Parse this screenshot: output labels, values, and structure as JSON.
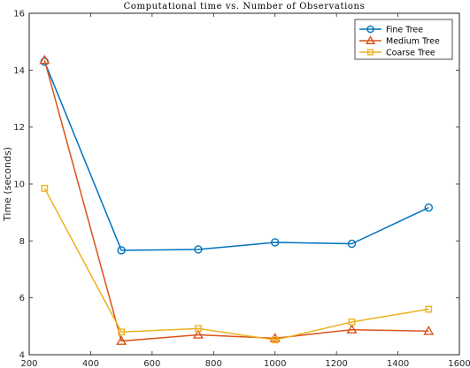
{
  "chart_data": {
    "type": "line",
    "title": "Computational time vs. Number of Observations",
    "xlabel": "",
    "ylabel": "Time (seconds)",
    "xlim": [
      200,
      1600
    ],
    "ylim": [
      4,
      16
    ],
    "xticks": [
      200,
      400,
      600,
      800,
      1000,
      1200,
      1400,
      1600
    ],
    "yticks": [
      4,
      6,
      8,
      10,
      12,
      14,
      16
    ],
    "grid": false,
    "legend_position": "top-right",
    "x": [
      250,
      500,
      750,
      1000,
      1250,
      1500
    ],
    "series": [
      {
        "name": "Fine Tree",
        "values": [
          14.3,
          7.67,
          7.7,
          7.95,
          7.9,
          9.17
        ],
        "color": "#0072BD",
        "marker": "circle"
      },
      {
        "name": "Medium Tree",
        "values": [
          14.35,
          4.48,
          4.7,
          4.58,
          4.88,
          4.83
        ],
        "color": "#D95319",
        "marker": "triangle"
      },
      {
        "name": "Coarse Tree",
        "values": [
          9.85,
          4.8,
          4.92,
          4.52,
          5.15,
          5.6
        ],
        "color": "#EDB120",
        "marker": "square"
      }
    ]
  }
}
